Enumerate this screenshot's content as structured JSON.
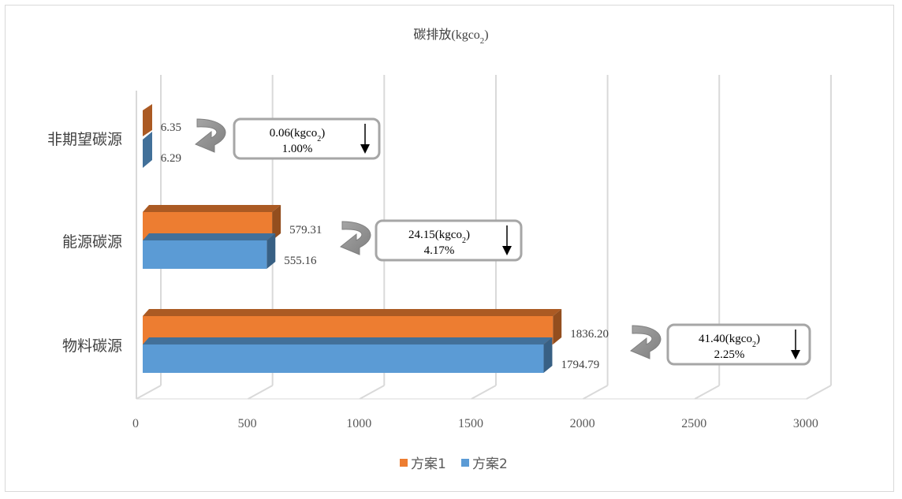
{
  "chart_data": {
    "type": "bar",
    "orientation": "horizontal",
    "style": "3d-clustered",
    "title": "碳排放(kgco",
    "title_sub": "2",
    "title_close": ")",
    "categories": [
      "物料碳源",
      "能源碳源",
      "非期望碳源"
    ],
    "series": [
      {
        "name": "方案1",
        "values": [
          1836.2,
          579.31,
          6.35
        ],
        "labels": [
          "1836.20",
          "579.31",
          "6.35"
        ],
        "color": "#ed7d31"
      },
      {
        "name": "方案2",
        "values": [
          1794.79,
          555.16,
          6.29
        ],
        "labels": [
          "1794.79",
          "555.16",
          "6.29"
        ],
        "color": "#5b9bd5"
      }
    ],
    "x_ticks": [
      "0",
      "500",
      "1000",
      "1500",
      "2000",
      "2500",
      "3000"
    ],
    "xlim": [
      0,
      3000
    ],
    "grid": true,
    "legend_position": "bottom",
    "annotations": [
      {
        "category": "非期望碳源",
        "line1_pre": "0.06(kgco",
        "line1_sub": "2",
        "line1_post": ")",
        "line2": "1.00%"
      },
      {
        "category": "能源碳源",
        "line1_pre": "24.15(kgco",
        "line1_sub": "2",
        "line1_post": ")",
        "line2": "4.17%"
      },
      {
        "category": "物料碳源",
        "line1_pre": "41.40(kgco",
        "line1_sub": "2",
        "line1_post": ")",
        "line2": "2.25%"
      }
    ]
  }
}
